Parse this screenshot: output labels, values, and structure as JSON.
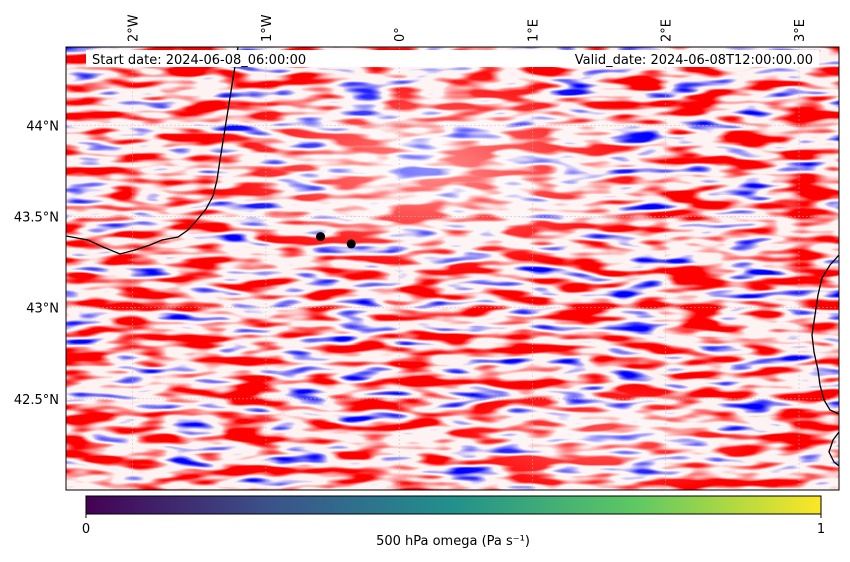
{
  "header": {
    "start_label": "Start date: 2024-06-08_06:00:00",
    "valid_label": "Valid_date: 2024-06-08T12:00:00.00"
  },
  "map": {
    "extent": {
      "lon_min": -2.5,
      "lon_max": 3.3,
      "lat_min": 42.0,
      "lat_max": 44.43
    },
    "lon_ticks": [
      {
        "value": -2,
        "label": "2°W"
      },
      {
        "value": -1,
        "label": "1°W"
      },
      {
        "value": 0,
        "label": "0°"
      },
      {
        "value": 1,
        "label": "1°E"
      },
      {
        "value": 2,
        "label": "2°E"
      },
      {
        "value": 3,
        "label": "3°E"
      }
    ],
    "lat_ticks": [
      {
        "value": 44.0,
        "label": "44°N"
      },
      {
        "value": 43.5,
        "label": "43.5°N"
      },
      {
        "value": 43.0,
        "label": "43°N"
      },
      {
        "value": 42.5,
        "label": "42.5°N"
      }
    ],
    "points": [
      {
        "lon": -0.59,
        "lat": 43.39
      },
      {
        "lon": -0.36,
        "lat": 43.35
      }
    ],
    "field_colors": {
      "positive": "#ff0000",
      "negative": "#0000ff",
      "neutral": "#ffffff"
    }
  },
  "colorbar": {
    "label": "500 hPa omega (Pa s⁻¹)",
    "min_label": "0",
    "max_label": "1",
    "colormap": "viridis",
    "stops": [
      "#440154",
      "#3b528b",
      "#21918c",
      "#5ec962",
      "#fde725"
    ]
  }
}
